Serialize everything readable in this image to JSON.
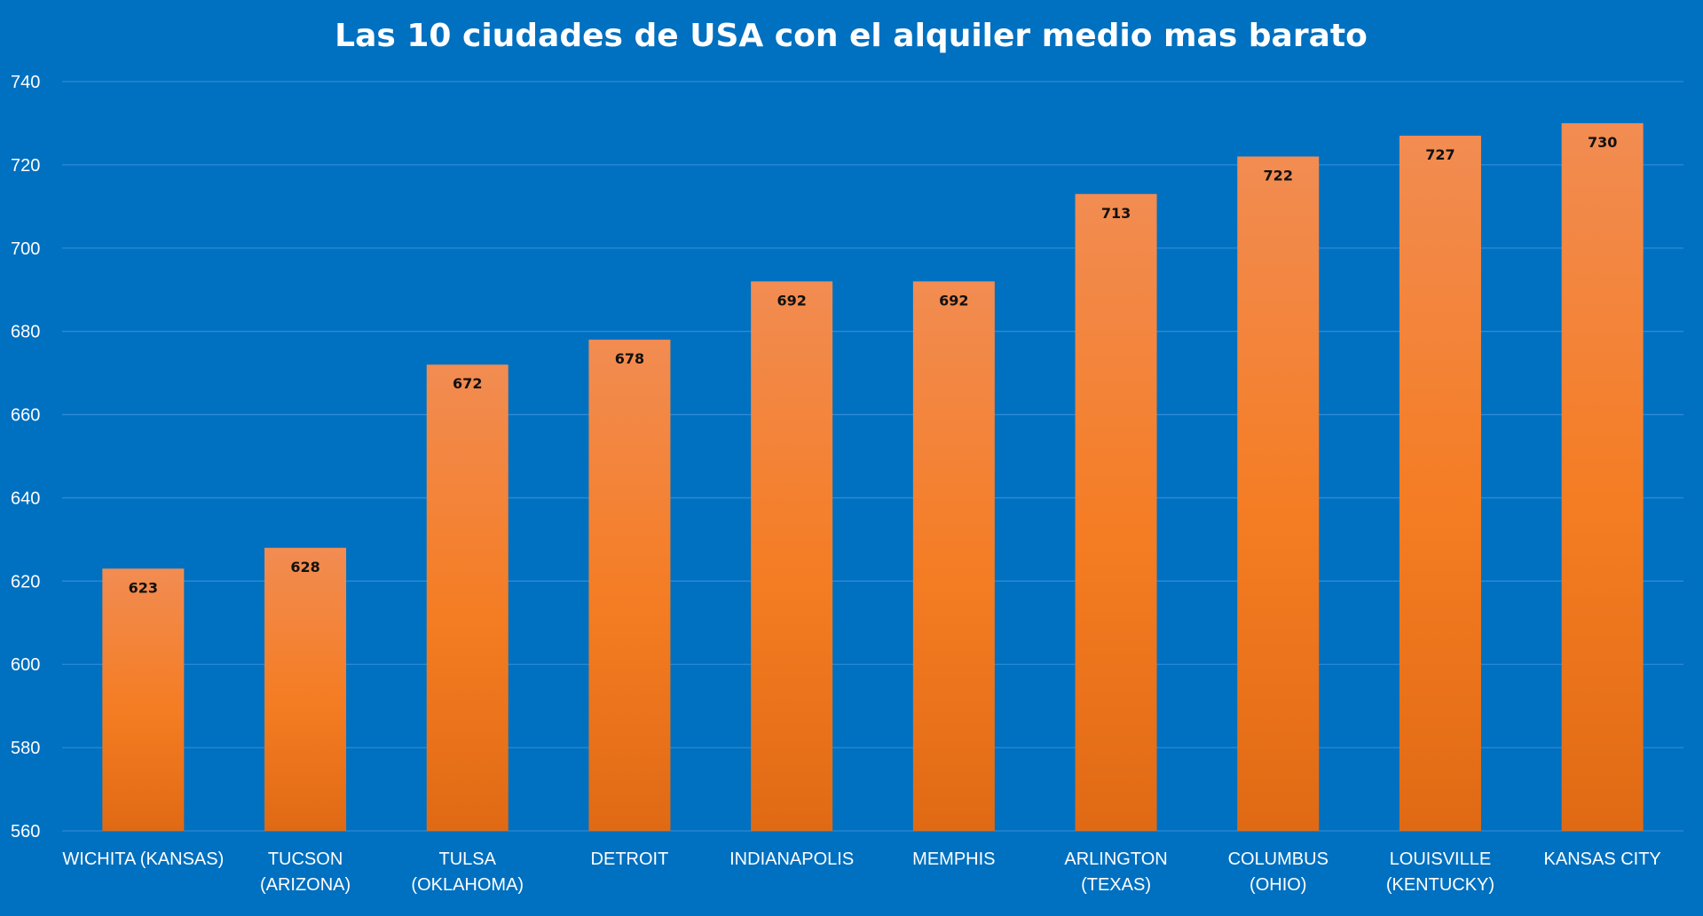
{
  "chart_data": {
    "type": "bar",
    "title": "Las 10 ciudades de USA con el alquiler medio mas barato",
    "categories": [
      [
        "WICHITA (KANSAS)"
      ],
      [
        "TUCSON",
        "(ARIZONA)"
      ],
      [
        "TULSA",
        "(OKLAHOMA)"
      ],
      [
        "DETROIT"
      ],
      [
        "INDIANAPOLIS"
      ],
      [
        "MEMPHIS"
      ],
      [
        "ARLINGTON",
        "(TEXAS)"
      ],
      [
        "COLUMBUS",
        "(OHIO)"
      ],
      [
        "LOUISVILLE",
        "(KENTUCKY)"
      ],
      [
        "KANSAS CITY"
      ]
    ],
    "values": [
      623,
      628,
      672,
      678,
      692,
      692,
      713,
      722,
      727,
      730
    ],
    "ylim": [
      560,
      740
    ],
    "yticks": [
      560,
      580,
      600,
      620,
      640,
      660,
      680,
      700,
      720,
      740
    ],
    "xlabel": "",
    "ylabel": "",
    "grid": true,
    "legend": "none",
    "colors": {
      "background": "#0070c0",
      "bar_top": "#f28c52",
      "bar_mid": "#f47c22",
      "bar_bottom": "#e06a14",
      "gridline": "#2e8ad6",
      "text": "#ffffff",
      "data_label": "#111111"
    }
  }
}
